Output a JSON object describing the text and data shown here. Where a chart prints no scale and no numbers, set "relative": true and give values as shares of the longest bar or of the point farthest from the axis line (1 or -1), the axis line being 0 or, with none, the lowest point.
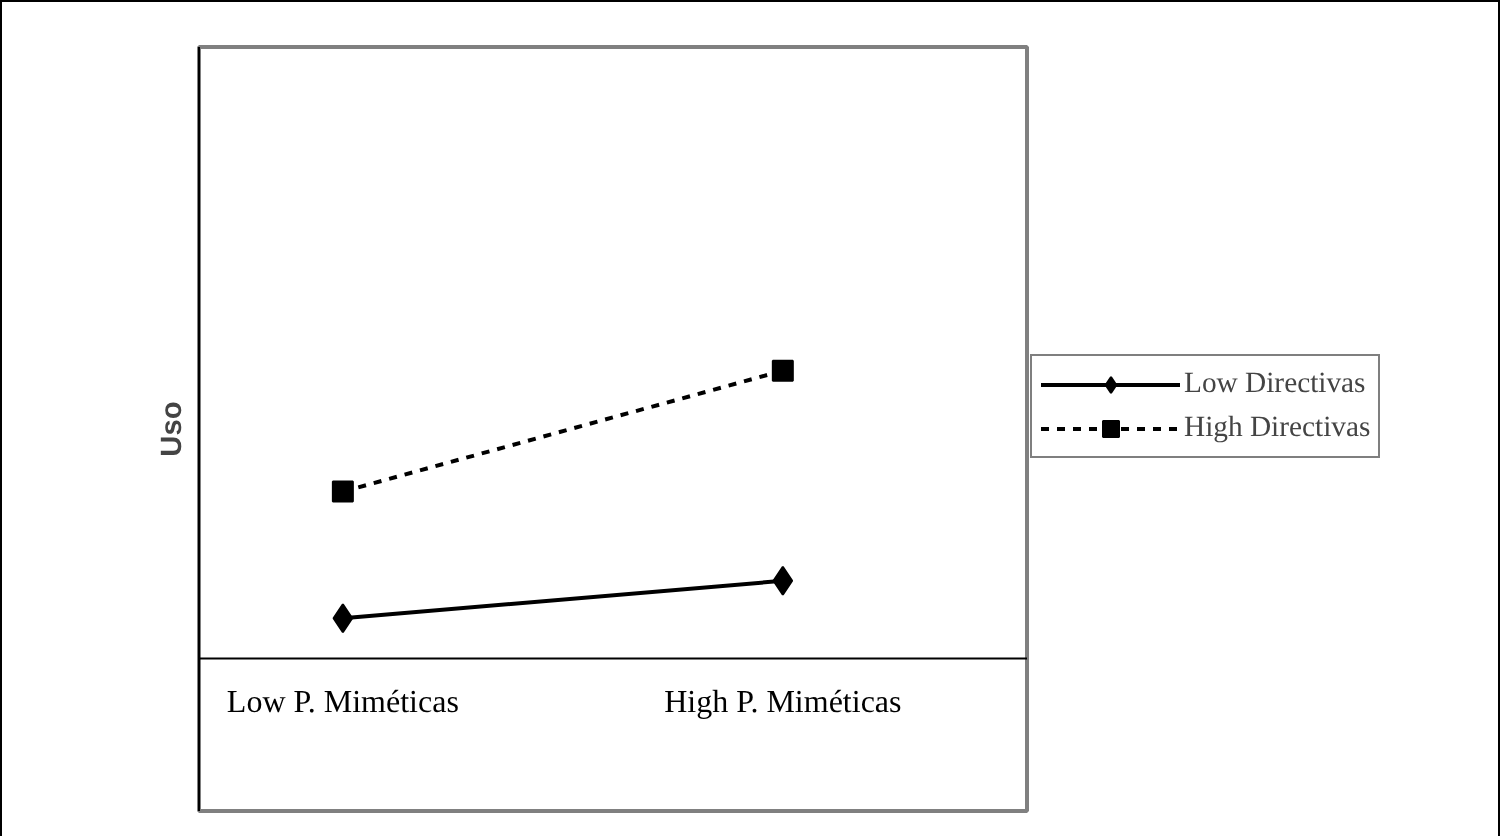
{
  "chart_data": {
    "type": "line",
    "ylabel": "Uso",
    "relative": true,
    "categories": [
      "Low P. Miméticas",
      "High P. Miméticas"
    ],
    "legend": "right",
    "grid": false,
    "series": [
      {
        "name": "Low Directivas",
        "color": "#000000",
        "values": [
          0.14,
          0.27
        ],
        "marker": "diamond",
        "line_style": "solid"
      },
      {
        "name": "High Directivas",
        "color": "#000000",
        "values": [
          0.58,
          1.0
        ],
        "marker": "square",
        "line_style": "dashed"
      }
    ]
  }
}
